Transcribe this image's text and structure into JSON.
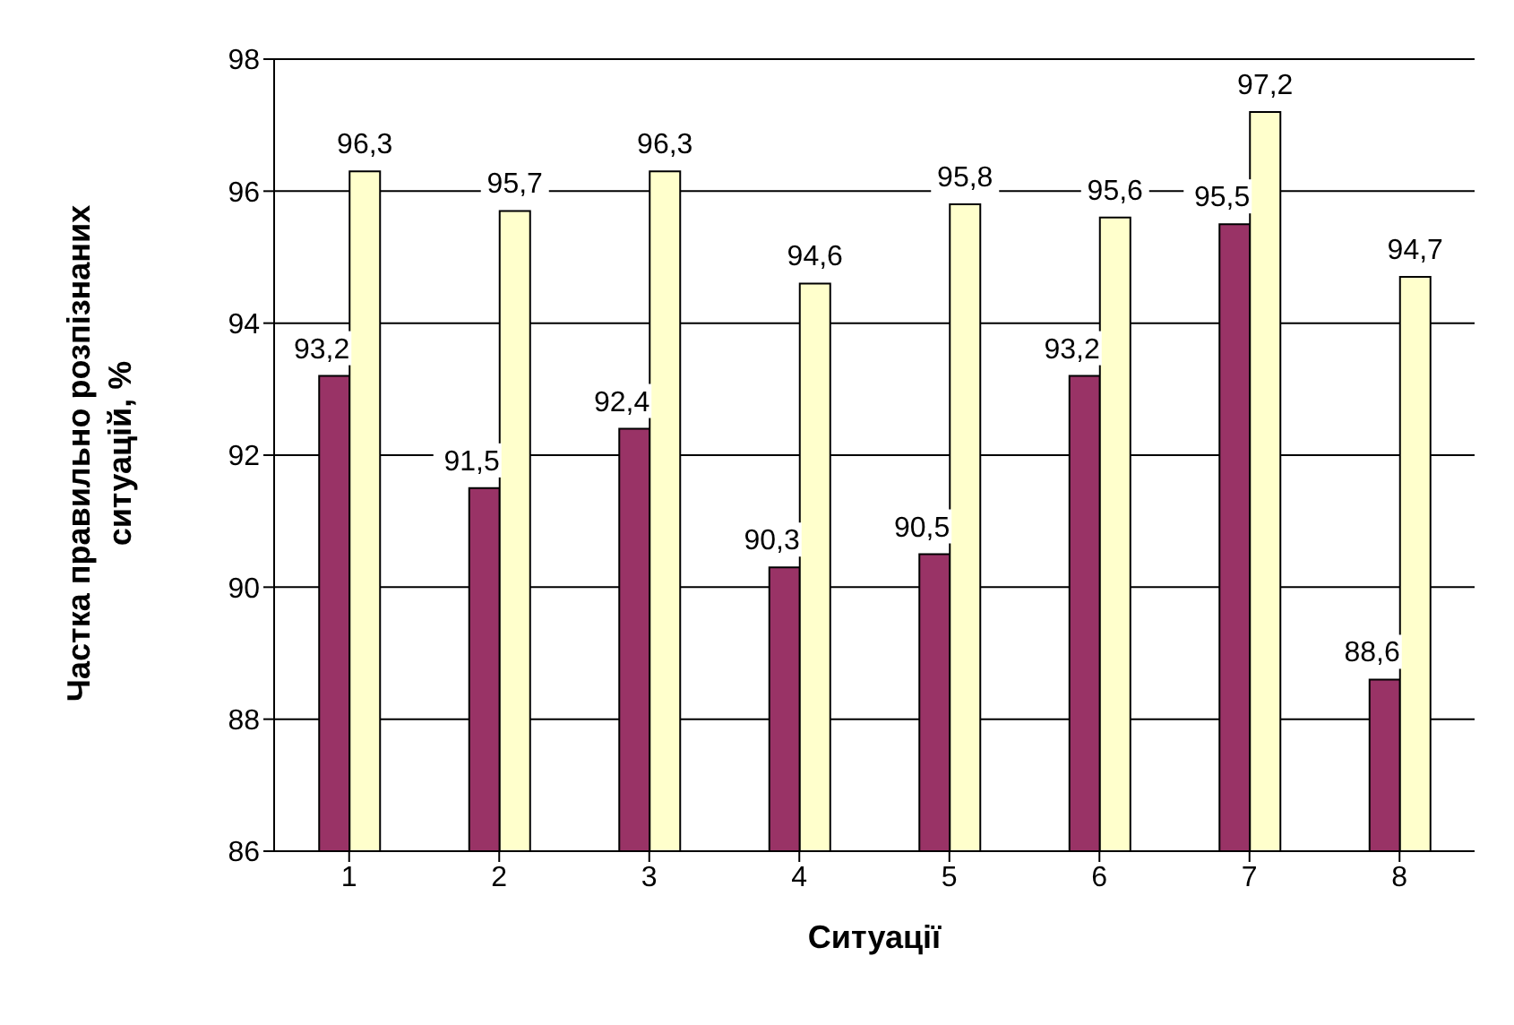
{
  "chart_data": {
    "type": "bar",
    "xlabel": "Ситуації",
    "ylabel": "Частка правильно розпізнаних ситуацій, %",
    "categories": [
      "1",
      "2",
      "3",
      "4",
      "5",
      "6",
      "7",
      "8"
    ],
    "series": [
      {
        "color": "#993366",
        "values": [
          93.2,
          91.5,
          92.4,
          90.3,
          90.5,
          93.2,
          95.5,
          88.6
        ],
        "value_labels": [
          "93,2",
          "91,5",
          "92,4",
          "90,3",
          "90,5",
          "93,2",
          "95,5",
          "88,6"
        ]
      },
      {
        "color": "#ffffcc",
        "values": [
          96.3,
          95.7,
          96.3,
          94.6,
          95.8,
          95.6,
          97.2,
          94.7
        ],
        "value_labels": [
          "96,3",
          "95,7",
          "96,3",
          "94,6",
          "95,8",
          "95,6",
          "97,2",
          "94,7"
        ]
      }
    ],
    "ylim": [
      86,
      98
    ],
    "yticks": [
      86,
      88,
      90,
      92,
      94,
      96,
      98
    ],
    "grid": "y",
    "legend": false
  }
}
